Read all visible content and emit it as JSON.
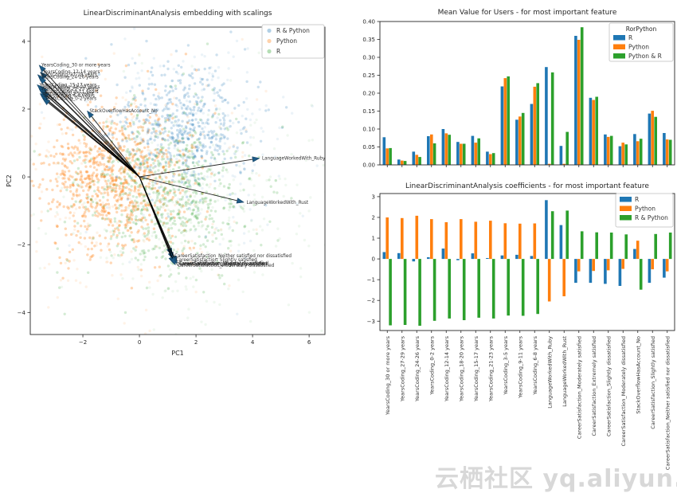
{
  "watermark": {
    "text": "云栖社区 yq.aliyun.com"
  },
  "colors": {
    "r": "#1f77b4",
    "python": "#ff7f0e",
    "both": "#2ca02c",
    "arrow_line": "#000000",
    "arrow_head": "#1d5a85",
    "spine": "#262626"
  },
  "chart_data": [
    {
      "type": "scatter",
      "title": "LinearDiscriminantAnalysis embedding with scalings",
      "xlabel": "PC1",
      "ylabel": "PC2",
      "xlim": [
        -3.86,
        6.56
      ],
      "ylim": [
        -4.65,
        4.42
      ],
      "xticks": [
        -2,
        0,
        2,
        4,
        6
      ],
      "yticks": [
        4,
        2,
        0,
        -2,
        -4
      ],
      "legend_position": "upper right",
      "legend": [
        {
          "label": "R & Python",
          "color": "#1f77b4"
        },
        {
          "label": "Python",
          "color": "#ff7f0e"
        },
        {
          "label": "R",
          "color": "#2ca02c"
        }
      ],
      "clusters": [
        {
          "group": "Python",
          "color": "#ff7f0e",
          "n": 850,
          "cx": -0.95,
          "cy": 0.0,
          "sx": 1.25,
          "sy": 1.05,
          "alpha": 0.3,
          "seed": 11
        },
        {
          "group": "Python",
          "color": "#ff7f0e",
          "n": 260,
          "cx": -0.7,
          "cy": -0.4,
          "sx": 2.1,
          "sy": 1.7,
          "alpha": 0.1,
          "seed": 12
        },
        {
          "group": "R & Python",
          "color": "#1f77b4",
          "n": 520,
          "cx": 1.5,
          "cy": 1.5,
          "sx": 1.2,
          "sy": 0.95,
          "alpha": 0.22,
          "seed": 21
        },
        {
          "group": "R & Python",
          "color": "#1f77b4",
          "n": 200,
          "cx": 1.8,
          "cy": 1.3,
          "sx": 2.0,
          "sy": 1.6,
          "alpha": 0.09,
          "seed": 22
        },
        {
          "group": "R",
          "color": "#2ca02c",
          "n": 680,
          "cx": 1.05,
          "cy": -0.55,
          "sx": 1.5,
          "sy": 1.15,
          "alpha": 0.2,
          "seed": 31
        },
        {
          "group": "R",
          "color": "#2ca02c",
          "n": 300,
          "cx": 1.7,
          "cy": -1.0,
          "sx": 2.4,
          "sy": 1.8,
          "alpha": 0.07,
          "seed": 32
        }
      ],
      "arrows": [
        {
          "label": "YearsCoding_30 or more years",
          "x": -3.55,
          "y": 3.3
        },
        {
          "label": "YearsCoding_12-14 years",
          "x": -3.5,
          "y": 3.1
        },
        {
          "label": "YearsCoding_27-29 years",
          "x": -3.6,
          "y": 3.02
        },
        {
          "label": "YearsCoding_24-26 years",
          "x": -3.55,
          "y": 2.95
        },
        {
          "label": "YearsCoding_15-17 years",
          "x": -3.62,
          "y": 2.72
        },
        {
          "label": "YearsCoding_18-20 years",
          "x": -3.5,
          "y": 2.66
        },
        {
          "label": "YearsCoding_21-23 years",
          "x": -3.55,
          "y": 2.6
        },
        {
          "label": "YearsCoding_9-11 years",
          "x": -3.45,
          "y": 2.52
        },
        {
          "label": "YearsCoding_3-5 years",
          "x": -3.52,
          "y": 2.46
        },
        {
          "label": "YearsCoding_6-8 years",
          "x": -3.48,
          "y": 2.4
        },
        {
          "label": "YearsCoding_0-2 years",
          "x": -3.42,
          "y": 2.32
        },
        {
          "label": "StackOverflowHasAccount_No",
          "x": -1.85,
          "y": 1.95
        },
        {
          "label": "LanguageWorkedWith_Ruby",
          "x": 4.25,
          "y": 0.55
        },
        {
          "label": "LanguageWorkedWith_Rust",
          "x": 3.7,
          "y": -0.75
        },
        {
          "label": "CareerSatisfaction_Neither satisfied nor dissatisfied",
          "x": 1.15,
          "y": -2.32
        },
        {
          "label": "CareerSatisfaction_Slightly satisfied",
          "x": 1.2,
          "y": -2.44
        },
        {
          "label": "CareerSatisfaction_Moderately satisfied",
          "x": 1.3,
          "y": -2.55
        },
        {
          "label": "CareerSatisfaction_Extremely satisfied",
          "x": 1.22,
          "y": -2.57
        },
        {
          "label": "CareerSatisfaction_Slightly dissatisfied",
          "x": 1.33,
          "y": -2.56
        },
        {
          "label": "CareerSatisfaction_Moderately dissatisfied",
          "x": 1.27,
          "y": -2.6
        }
      ]
    },
    {
      "type": "bar",
      "title": "Mean Value for Users - for most important feature",
      "legend_title": "RorPython",
      "legend_position": "upper right",
      "ylim": [
        0,
        0.4
      ],
      "yticks": [
        0.0,
        0.05,
        0.1,
        0.15,
        0.2,
        0.25,
        0.3,
        0.35,
        0.4
      ],
      "ytick_labels": [
        "0.00",
        "0.05",
        "0.10",
        "0.15",
        "0.20",
        "0.25",
        "0.30",
        "0.35",
        "0.40"
      ],
      "categories": [
        "YearsCoding_30 or more years",
        "YearsCoding_27-29 years",
        "YearsCoding_24-26 years",
        "YearsCoding_0-2 years",
        "YearsCoding_12-14 years",
        "YearsCoding_18-20 years",
        "YearsCoding_15-17 years",
        "YearsCoding_21-23 years",
        "YearsCoding_3-5 years",
        "YearsCoding_9-11 years",
        "YearsCoding_6-8 years",
        "LanguageWorkedWith_Ruby",
        "LanguageWorkedWith_Rust",
        "CareerSatisfaction_Moderately satisfied",
        "CareerSatisfaction_Extremely satisfied",
        "CareerSatisfaction_Slightly dissatisfied",
        "CareerSatisfaction_Moderately dissatisfied",
        "StackOverflowHasAccount_No",
        "CareerSatisfaction_Slightly satisfied",
        "CareerSatisfaction_Neither satisfied nor dissatisfied"
      ],
      "series": [
        {
          "name": "R",
          "color": "#1f77b4",
          "values": [
            0.077,
            0.015,
            0.037,
            0.08,
            0.1,
            0.064,
            0.081,
            0.037,
            0.219,
            0.126,
            0.17,
            0.273,
            0.053,
            0.36,
            0.187,
            0.085,
            0.052,
            0.086,
            0.143,
            0.089
          ]
        },
        {
          "name": "Python",
          "color": "#ff7f0e",
          "values": [
            0.046,
            0.012,
            0.028,
            0.085,
            0.088,
            0.059,
            0.062,
            0.03,
            0.242,
            0.135,
            0.218,
            0.003,
            0.003,
            0.349,
            0.181,
            0.078,
            0.062,
            0.066,
            0.151,
            0.071
          ]
        },
        {
          "name": "Python & R",
          "color": "#2ca02c",
          "values": [
            0.047,
            0.011,
            0.022,
            0.06,
            0.084,
            0.059,
            0.074,
            0.033,
            0.247,
            0.145,
            0.228,
            0.258,
            0.092,
            0.384,
            0.19,
            0.081,
            0.057,
            0.073,
            0.134,
            0.07
          ]
        }
      ]
    },
    {
      "type": "bar",
      "title": "LinearDiscriminantAnalysis coefficients - for most important feature",
      "legend_position": "upper right",
      "ylim": [
        -3.45,
        3.15
      ],
      "yticks": [
        3,
        2,
        1,
        0,
        -1,
        -2,
        -3
      ],
      "ytick_labels": [
        "3",
        "2",
        "1",
        "0",
        "-1",
        "-2",
        "-3"
      ],
      "categories": [
        "YearsCoding_30 or more years",
        "YearsCoding_27-29 years",
        "YearsCoding_24-26 years",
        "YearsCoding_0-2 years",
        "YearsCoding_12-14 years",
        "YearsCoding_18-20 years",
        "YearsCoding_15-17 years",
        "YearsCoding_21-23 years",
        "YearsCoding_3-5 years",
        "YearsCoding_9-11 years",
        "YearsCoding_6-8 years",
        "LanguageWorkedWith_Ruby",
        "LanguageWorkedWith_Rust",
        "CareerSatisfaction_Moderately satisfied",
        "CareerSatisfaction_Extremely satisfied",
        "CareerSatisfaction_Slightly dissatisfied",
        "CareerSatisfaction_Moderately dissatisfied",
        "StackOverflowHasAccount_No",
        "CareerSatisfaction_Slightly satisfied",
        "CareerSatisfaction_Neither satisfied nor dissatisfied"
      ],
      "series": [
        {
          "name": "R",
          "color": "#1f77b4",
          "values": [
            0.33,
            0.28,
            -0.12,
            0.08,
            0.5,
            -0.06,
            0.27,
            0.04,
            0.17,
            0.2,
            0.14,
            2.83,
            1.63,
            -1.15,
            -1.15,
            -1.2,
            -1.3,
            0.48,
            -1.15,
            -0.9
          ]
        },
        {
          "name": "Python",
          "color": "#ff7f0e",
          "values": [
            2.0,
            1.97,
            2.08,
            1.92,
            1.77,
            1.92,
            1.79,
            1.84,
            1.72,
            1.7,
            1.71,
            -2.05,
            -1.8,
            -0.6,
            -0.58,
            -0.55,
            -0.48,
            0.88,
            -0.5,
            -0.6
          ]
        },
        {
          "name": "R & Python",
          "color": "#2ca02c",
          "values": [
            -3.2,
            -3.18,
            -3.22,
            -2.98,
            -2.87,
            -2.95,
            -2.83,
            -2.87,
            -2.73,
            -2.74,
            -2.65,
            2.3,
            2.33,
            1.33,
            1.28,
            1.27,
            1.18,
            -1.48,
            1.2,
            1.27
          ]
        }
      ]
    }
  ]
}
